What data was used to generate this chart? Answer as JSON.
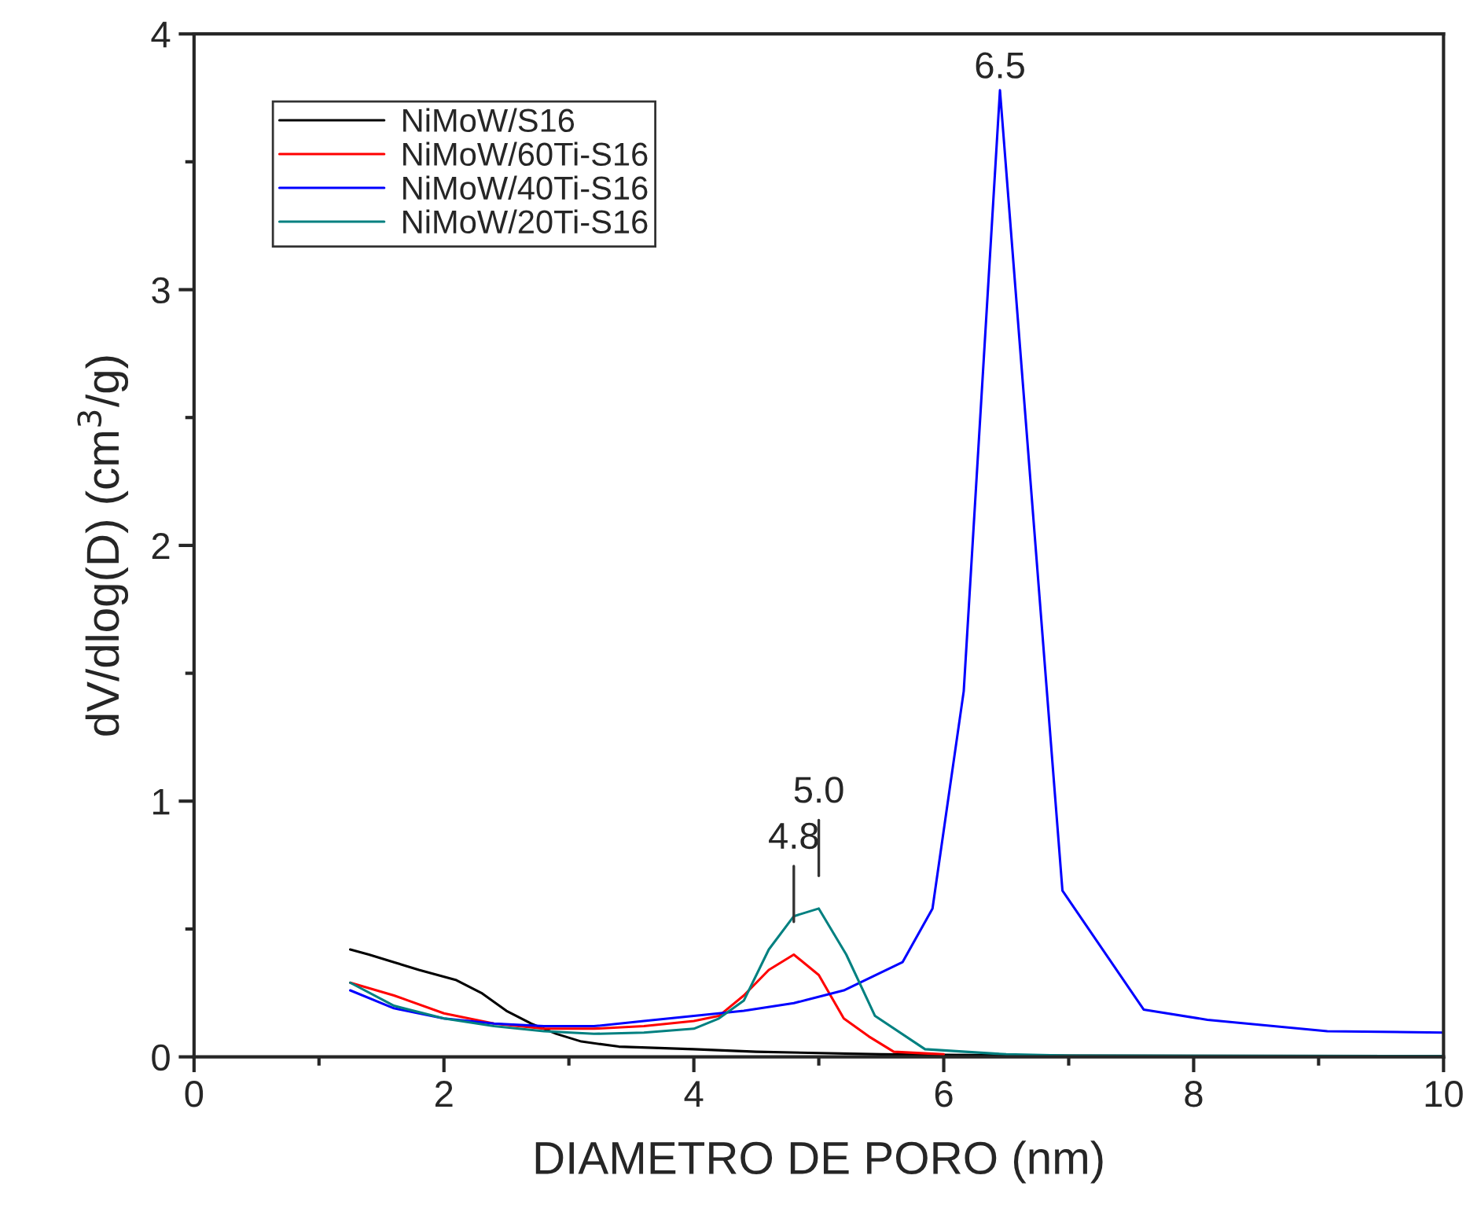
{
  "chart_data": {
    "type": "line",
    "xlabel": "DIAMETRO DE PORO (nm)",
    "ylabel": "dV/dlog(D) (cm$^{3}$/g)",
    "xlim": [
      0,
      10
    ],
    "xticks": [
      0,
      2,
      4,
      6,
      8,
      10
    ],
    "ylim": [
      0,
      4
    ],
    "yticks": [
      0,
      1,
      2,
      3,
      4
    ],
    "grid": false,
    "legend": "top left",
    "marker": "none",
    "line_style": "solid",
    "series": [
      {
        "name": "NiMoW/S16",
        "color": "#000000",
        "x": [
          1.25,
          1.4,
          1.6,
          1.8,
          2.1,
          2.3,
          2.5,
          2.7,
          2.9,
          3.1,
          3.4,
          4.0,
          4.5,
          5.0,
          5.5,
          6.0,
          7.0,
          8.0,
          10.0
        ],
        "values": [
          0.42,
          0.4,
          0.37,
          0.34,
          0.3,
          0.25,
          0.18,
          0.13,
          0.09,
          0.06,
          0.04,
          0.03,
          0.02,
          0.015,
          0.01,
          0.008,
          0.005,
          0.004,
          0.003
        ]
      },
      {
        "name": "NiMoW/60Ti-S16",
        "color": "#ff0000",
        "x": [
          1.25,
          1.6,
          2.0,
          2.4,
          2.8,
          3.2,
          3.6,
          4.0,
          4.2,
          4.4,
          4.6,
          4.8,
          5.0,
          5.2,
          5.4,
          5.6,
          6.0
        ],
        "values": [
          0.29,
          0.24,
          0.17,
          0.13,
          0.11,
          0.11,
          0.12,
          0.14,
          0.16,
          0.24,
          0.34,
          0.4,
          0.32,
          0.15,
          0.08,
          0.02,
          0.01
        ]
      },
      {
        "name": "NiMoW/40Ti-S16",
        "color": "#0000ff",
        "x": [
          1.25,
          1.6,
          2.0,
          2.4,
          2.8,
          3.2,
          3.6,
          4.0,
          4.4,
          4.8,
          5.2,
          5.67,
          5.91,
          6.16,
          6.45,
          6.95,
          7.6,
          8.11,
          9.07,
          10.0
        ],
        "values": [
          0.26,
          0.19,
          0.15,
          0.13,
          0.12,
          0.12,
          0.14,
          0.16,
          0.18,
          0.21,
          0.26,
          0.37,
          0.58,
          1.43,
          3.78,
          0.65,
          0.185,
          0.145,
          0.1,
          0.095
        ]
      },
      {
        "name": "NiMoW/20Ti-S16",
        "color": "#008080",
        "x": [
          1.25,
          1.6,
          2.0,
          2.4,
          2.8,
          3.2,
          3.6,
          4.0,
          4.2,
          4.4,
          4.6,
          4.8,
          5.0,
          5.22,
          5.45,
          5.85,
          6.5,
          7.0,
          10.0
        ],
        "values": [
          0.29,
          0.2,
          0.15,
          0.12,
          0.1,
          0.09,
          0.095,
          0.11,
          0.15,
          0.22,
          0.42,
          0.55,
          0.58,
          0.4,
          0.16,
          0.03,
          0.01,
          0.005,
          0.003
        ]
      }
    ],
    "annotations": [
      {
        "text": "6.5",
        "x": 6.45,
        "y": 3.78
      },
      {
        "text": "4.8",
        "x": 4.8,
        "y": 0.4
      },
      {
        "text": "5.0",
        "x": 5.0,
        "y": 0.58
      }
    ]
  }
}
